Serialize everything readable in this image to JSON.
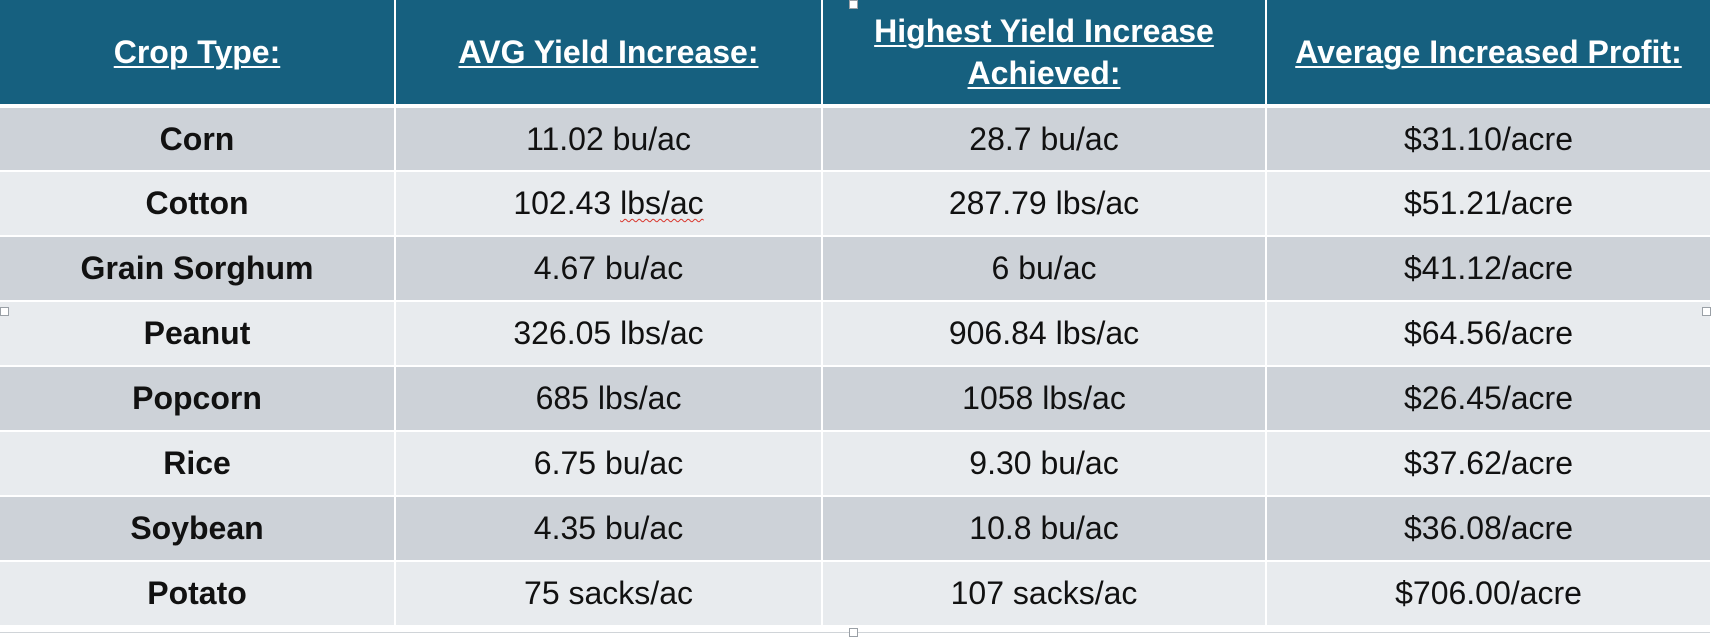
{
  "table": {
    "headers": [
      "Crop Type:",
      "AVG Yield Increase:",
      "Highest Yield Increase Achieved:",
      "Average Increased Profit:"
    ],
    "rows": [
      {
        "crop": "Corn",
        "avg": "11.02 bu/ac",
        "highest": "28.7 bu/ac",
        "profit": "$31.10/acre"
      },
      {
        "crop": "Cotton",
        "avg_num": "102.43 ",
        "avg_unit": "lbs/ac",
        "highest": "287.79 lbs/ac",
        "profit": "$51.21/acre"
      },
      {
        "crop": "Grain Sorghum",
        "avg": "4.67 bu/ac",
        "highest": "6 bu/ac",
        "profit": "$41.12/acre"
      },
      {
        "crop": "Peanut",
        "avg": "326.05 lbs/ac",
        "highest": "906.84 lbs/ac",
        "profit": "$64.56/acre"
      },
      {
        "crop": "Popcorn",
        "avg": "685 lbs/ac",
        "highest": "1058 lbs/ac",
        "profit": "$26.45/acre"
      },
      {
        "crop": "Rice",
        "avg": "6.75 bu/ac",
        "highest": "9.30 bu/ac",
        "profit": "$37.62/acre"
      },
      {
        "crop": "Soybean",
        "avg": "4.35 bu/ac",
        "highest": "10.8 bu/ac",
        "profit": "$36.08/acre"
      },
      {
        "crop": "Potato",
        "avg": "75 sacks/ac",
        "highest": "107 sacks/ac",
        "profit": "$706.00/acre"
      }
    ]
  },
  "colors": {
    "header_bg": "#16607f",
    "row_dark": "#cdd2d8",
    "row_light": "#e8ebee"
  }
}
